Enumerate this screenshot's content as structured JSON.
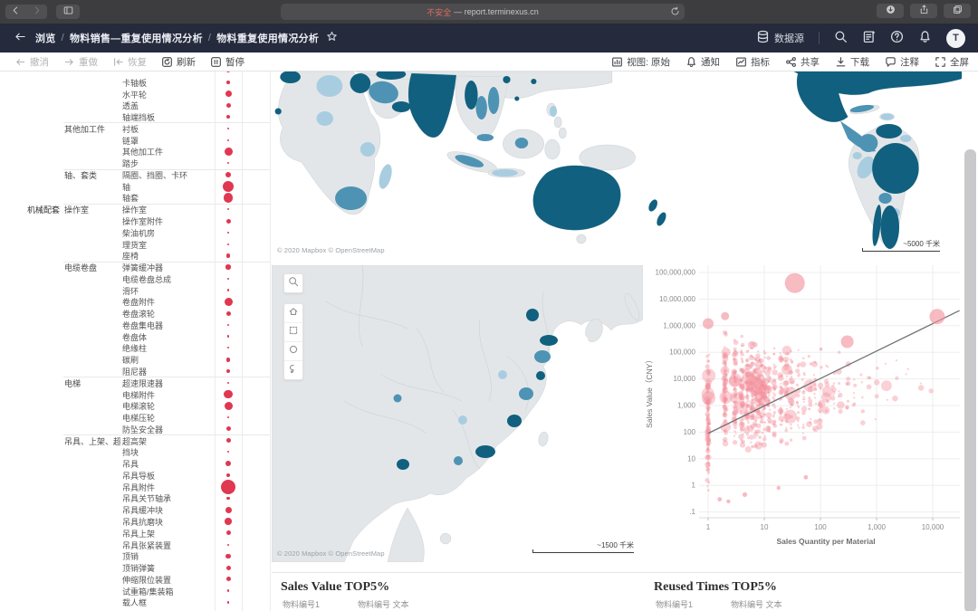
{
  "browser": {
    "security_label": "不安全",
    "url": "— report.terminexus.cn"
  },
  "navbar": {
    "breadcrumb": [
      "浏览",
      "物料销售—重复使用情况分析",
      "物料重复使用情况分析"
    ],
    "datasource_label": "数据源",
    "avatar_initial": "T"
  },
  "toolbar": {
    "left": [
      {
        "icon": "undo",
        "label": "撤消",
        "enabled": false
      },
      {
        "icon": "redo",
        "label": "重做",
        "enabled": false
      },
      {
        "icon": "restore",
        "label": "恢复",
        "enabled": false
      },
      {
        "icon": "refresh",
        "label": "刷新",
        "enabled": true
      },
      {
        "icon": "pause",
        "label": "暂停",
        "enabled": true
      }
    ],
    "right": [
      {
        "icon": "viewchart",
        "label": "视图: 原始"
      },
      {
        "icon": "bell",
        "label": "通知"
      },
      {
        "icon": "metric",
        "label": "指标"
      },
      {
        "icon": "share",
        "label": "共享"
      },
      {
        "icon": "download",
        "label": "下载"
      },
      {
        "icon": "comment",
        "label": "注释"
      },
      {
        "icon": "fullscreen",
        "label": "全屏"
      }
    ]
  },
  "left_panel": {
    "rows": [
      {
        "leaf": "",
        "d": 4,
        "sep": false
      },
      {
        "leaf": "卡轴板",
        "d": 3.5
      },
      {
        "leaf": "水平轮",
        "d": 7
      },
      {
        "leaf": "透盖",
        "d": 5
      },
      {
        "leaf": "轴端挡板",
        "d": 4.5
      },
      {
        "l2": "其他加工件",
        "leaf": "衬板",
        "d": 2,
        "sep": true
      },
      {
        "leaf": "链罩",
        "d": 2
      },
      {
        "leaf": "其他加工件",
        "d": 9
      },
      {
        "leaf": "踏步",
        "d": 2
      },
      {
        "l2": "轴、套类",
        "leaf": "隔圈、挡圈、卡环",
        "d": 6,
        "sep": true
      },
      {
        "leaf": "轴",
        "d": 12
      },
      {
        "leaf": "轴套",
        "d": 10.5
      },
      {
        "l1": "机械配套",
        "l2": "操作室",
        "leaf": "操作室",
        "d": 2,
        "sep": true
      },
      {
        "leaf": "操作室附件",
        "d": 5
      },
      {
        "leaf": "柴油机房",
        "d": 2
      },
      {
        "leaf": "理货室",
        "d": 2
      },
      {
        "leaf": "座椅",
        "d": 4.5
      },
      {
        "l2": "电缆卷盘",
        "leaf": "弹簧缓冲器",
        "d": 5.5,
        "sep": true
      },
      {
        "leaf": "电缆卷盘总成",
        "d": 2
      },
      {
        "leaf": "滑环",
        "d": 2.5
      },
      {
        "leaf": "卷盘附件",
        "d": 9
      },
      {
        "leaf": "卷盘滚轮",
        "d": 5
      },
      {
        "leaf": "卷盘集电器",
        "d": 2.5
      },
      {
        "leaf": "卷盘体",
        "d": 2.5
      },
      {
        "leaf": "绝缘柱",
        "d": 2
      },
      {
        "leaf": "碳刷",
        "d": 4.5
      },
      {
        "leaf": "阻尼器",
        "d": 4.5
      },
      {
        "l2": "电梯",
        "leaf": "超速限速器",
        "d": 2,
        "sep": true
      },
      {
        "leaf": "电梯附件",
        "d": 9.5
      },
      {
        "leaf": "电梯滚轮",
        "d": 9
      },
      {
        "leaf": "电梯压轮",
        "d": 2
      },
      {
        "leaf": "防坠安全器",
        "d": 5
      },
      {
        "l2": "吊具、上架、超高..",
        "leaf": "超高架",
        "d": 5,
        "sep": true
      },
      {
        "leaf": "挡块",
        "d": 2
      },
      {
        "leaf": "吊具",
        "d": 6
      },
      {
        "leaf": "吊具导板",
        "d": 4.5
      },
      {
        "leaf": "吊具附件",
        "d": 16
      },
      {
        "leaf": "吊具关节轴承",
        "d": 3.5
      },
      {
        "leaf": "吊具缓冲块",
        "d": 7
      },
      {
        "leaf": "吊具抗磨块",
        "d": 7.5
      },
      {
        "leaf": "吊具上架",
        "d": 5
      },
      {
        "leaf": "吊具张紧装置",
        "d": 2
      },
      {
        "leaf": "顶销",
        "d": 5.5
      },
      {
        "leaf": "顶销弹簧",
        "d": 5
      },
      {
        "leaf": "伸缩限位装置",
        "d": 5
      },
      {
        "leaf": "试重箱/集装箱",
        "d": 2.5
      },
      {
        "leaf": "载人框",
        "d": 2.5
      }
    ]
  },
  "world_map": {
    "attribution": "© 2020 Mapbox © OpenStreetMap",
    "scale": "~5000 千米",
    "regions": [
      {
        "name": "Morocco",
        "tone": "dark"
      },
      {
        "name": "Egypt",
        "tone": "dark"
      },
      {
        "name": "Libya",
        "tone": "light"
      },
      {
        "name": "Senegal",
        "tone": "dark"
      },
      {
        "name": "Nigeria",
        "tone": "light"
      },
      {
        "name": "Tanzania",
        "tone": "light"
      },
      {
        "name": "Madagascar",
        "tone": "light"
      },
      {
        "name": "South Africa",
        "tone": "medium"
      },
      {
        "name": "Saudi Arabia",
        "tone": "medium"
      },
      {
        "name": "Oman/Yemen",
        "tone": "dark"
      },
      {
        "name": "India",
        "tone": "dark"
      },
      {
        "name": "Myanmar",
        "tone": "dark"
      },
      {
        "name": "Thailand",
        "tone": "medium"
      },
      {
        "name": "Vietnam",
        "tone": "medium"
      },
      {
        "name": "Malaysia",
        "tone": "medium"
      },
      {
        "name": "Indonesia",
        "tone": "light"
      },
      {
        "name": "Philippines",
        "tone": "light"
      },
      {
        "name": "Australia",
        "tone": "dark"
      },
      {
        "name": "New Zealand",
        "tone": "dark"
      },
      {
        "name": "Mexico",
        "tone": "dark"
      },
      {
        "name": "Cuba",
        "tone": "medium"
      },
      {
        "name": "Venezuela",
        "tone": "dark"
      },
      {
        "name": "Colombia",
        "tone": "medium"
      },
      {
        "name": "Peru",
        "tone": "light"
      },
      {
        "name": "Ecuador",
        "tone": "light"
      },
      {
        "name": "Brazil",
        "tone": "dark"
      },
      {
        "name": "Bolivia",
        "tone": "medium"
      },
      {
        "name": "Paraguay",
        "tone": "light"
      },
      {
        "name": "Chile",
        "tone": "dark"
      },
      {
        "name": "Argentina",
        "tone": "dark"
      }
    ]
  },
  "china_map": {
    "attribution": "© 2020 Mapbox © OpenStreetMap",
    "scale": "~1500 千米",
    "regions": [
      {
        "name": "Beijing/Tianjin",
        "tone": "dark"
      },
      {
        "name": "Shandong",
        "tone": "dark"
      },
      {
        "name": "Jiangsu",
        "tone": "medium"
      },
      {
        "name": "Shanghai",
        "tone": "dark"
      },
      {
        "name": "Zhejiang",
        "tone": "medium"
      },
      {
        "name": "Fujian",
        "tone": "dark"
      },
      {
        "name": "Guangdong",
        "tone": "dark"
      },
      {
        "name": "Guizhou",
        "tone": "dark"
      },
      {
        "name": "Gansu",
        "tone": "medium"
      },
      {
        "name": "Hubei",
        "tone": "light"
      }
    ]
  },
  "chart_data": {
    "type": "scatter",
    "xlabel": "Sales Quantity per Material",
    "ylabel": "Sales Value（CNY）",
    "x_scale": "log",
    "y_scale": "log",
    "x_ticks": [
      "1",
      "10",
      "100",
      "1,000",
      "10,000"
    ],
    "y_ticks": [
      "100,000,000",
      "10,000,000",
      "1,000,000",
      "100,000",
      "10,000",
      "1,000",
      "100",
      "10",
      "1",
      ".1"
    ],
    "xlim": [
      1,
      33000
    ],
    "ylim": [
      0.05,
      100000000
    ],
    "grid": true,
    "point_color": "#f2919d",
    "trend_line": {
      "x1": 1,
      "y1": 90,
      "x2": 30000,
      "y2": 3700000,
      "color": "#737373"
    },
    "featured_points": [
      {
        "q": 35,
        "value": 40000000,
        "r": 11
      },
      {
        "q": 12000,
        "value": 2200000,
        "r": 8.5
      },
      {
        "q": 2,
        "value": 2300000,
        "r": 4.5
      },
      {
        "q": 300,
        "value": 250000,
        "r": 7
      },
      {
        "q": 1,
        "value": 1200000,
        "r": 6
      },
      {
        "q": 1.6,
        "value": 0.3,
        "r": 2.4
      },
      {
        "q": 2.3,
        "value": 0.25,
        "r": 2.2
      },
      {
        "q": 4.5,
        "value": 0.45,
        "r": 2.6
      },
      {
        "q": 18,
        "value": 0.8,
        "r": 2.2
      },
      {
        "q": 55,
        "value": 2,
        "r": 2.4
      }
    ],
    "bubble_columns": [
      {
        "q": 1,
        "n": 110,
        "emin": -1.0,
        "emax": 6.05
      },
      {
        "q": 2,
        "n": 80,
        "emin": 0.9,
        "emax": 6.3
      },
      {
        "q": 3,
        "n": 70,
        "emin": 0.9,
        "emax": 6.15
      },
      {
        "q": 4,
        "n": 62,
        "emin": 0.9,
        "emax": 6.0
      },
      {
        "q": 5,
        "n": 56,
        "emin": 0.9,
        "emax": 6.0
      },
      {
        "q": 6,
        "n": 50,
        "emin": 0.9,
        "emax": 5.9
      },
      {
        "q": 7,
        "n": 46,
        "emin": 0.9,
        "emax": 5.9
      },
      {
        "q": 8,
        "n": 44,
        "emin": 0.9,
        "emax": 5.85
      },
      {
        "q": 9,
        "n": 40,
        "emin": 0.9,
        "emax": 5.8
      },
      {
        "q": 10,
        "n": 42,
        "emin": 1.0,
        "emax": 5.85
      },
      {
        "q": 12,
        "n": 30,
        "emin": 1.0,
        "emax": 5.8
      },
      {
        "q": 15,
        "n": 28,
        "emin": 1.0,
        "emax": 5.7
      },
      {
        "q": 20,
        "n": 30,
        "emin": 1.0,
        "emax": 5.9
      },
      {
        "q": 25,
        "n": 22,
        "emin": 1.0,
        "emax": 5.7
      },
      {
        "q": 30,
        "n": 22,
        "emin": 1.0,
        "emax": 6.0
      },
      {
        "q": 40,
        "n": 20,
        "emin": 1.1,
        "emax": 5.7
      },
      {
        "q": 50,
        "n": 18,
        "emin": 1.1,
        "emax": 5.6
      },
      {
        "q": 65,
        "n": 15,
        "emin": 1.2,
        "emax": 5.6
      },
      {
        "q": 80,
        "n": 14,
        "emin": 1.2,
        "emax": 5.5
      },
      {
        "q": 100,
        "n": 16,
        "emin": 1.2,
        "emax": 5.6
      },
      {
        "q": 130,
        "n": 10,
        "emin": 1.4,
        "emax": 5.5
      },
      {
        "q": 170,
        "n": 9,
        "emin": 1.5,
        "emax": 5.4
      },
      {
        "q": 220,
        "n": 8,
        "emin": 1.5,
        "emax": 5.5
      },
      {
        "q": 300,
        "n": 7,
        "emin": 1.8,
        "emax": 5.4
      },
      {
        "q": 400,
        "n": 6,
        "emin": 1.8,
        "emax": 5.3
      },
      {
        "q": 550,
        "n": 5,
        "emin": 2.0,
        "emax": 5.2
      },
      {
        "q": 750,
        "n": 4,
        "emin": 2.0,
        "emax": 5.2
      },
      {
        "q": 1000,
        "n": 4,
        "emin": 2.2,
        "emax": 5.3
      },
      {
        "q": 1500,
        "n": 3,
        "emin": 2.4,
        "emax": 5.0
      },
      {
        "q": 2200,
        "n": 3,
        "emin": 2.5,
        "emax": 5.0
      },
      {
        "q": 3500,
        "n": 2,
        "emin": 2.8,
        "emax": 4.8
      },
      {
        "q": 6000,
        "n": 2,
        "emin": 3.0,
        "emax": 4.6
      },
      {
        "q": 9000,
        "n": 1,
        "emin": 3.2,
        "emax": 4.4
      }
    ]
  },
  "bottom": {
    "left_title": "Sales Value TOP5%",
    "right_title": "Reused Times TOP5%",
    "col1": "物料编号1",
    "col2": "物料编号 文本"
  },
  "colors": {
    "accent_red": "#df3850",
    "map_dark": "#11607f",
    "map_medium": "#4e93b4",
    "map_light": "#a9cde0",
    "map_land": "#e3e6e8",
    "bubble_pink": "#f2919d",
    "navbar_bg": "#252a3c"
  }
}
